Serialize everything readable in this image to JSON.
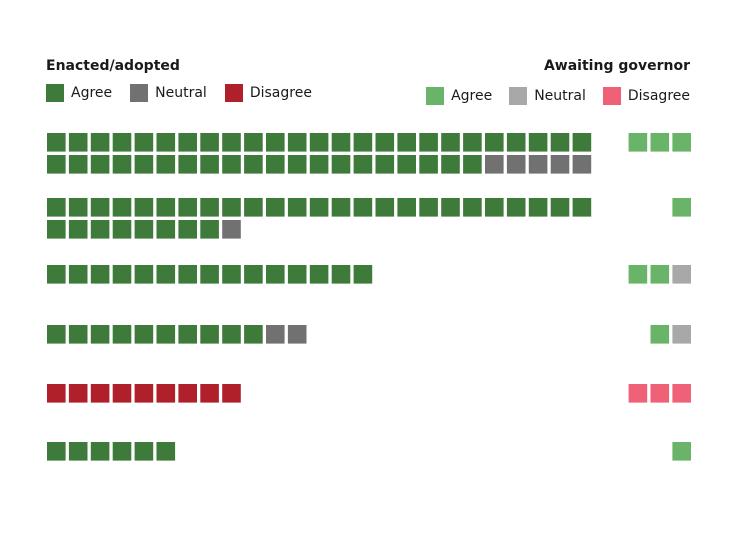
{
  "legend": {
    "enacted_title": "Enacted/adopted",
    "awaiting_title": "Awaiting governor",
    "enacted_items": [
      {
        "label": "Agree",
        "color": "#3e7a3a"
      },
      {
        "label": "Neutral",
        "color": "#717171"
      },
      {
        "label": "Disagree",
        "color": "#b0202b"
      }
    ],
    "awaiting_items": [
      {
        "label": "Agree",
        "color": "#6ab46a"
      },
      {
        "label": "Neutral",
        "color": "#a8a8a8"
      },
      {
        "label": "Disagree",
        "color": "#ee6176"
      }
    ]
  },
  "chart_data": {
    "type": "waffle",
    "row_count": 6,
    "units_per_line": 25,
    "groups": [
      {
        "enacted": {
          "agree": 45,
          "neutral": 5,
          "disagree": 0
        },
        "awaiting": {
          "agree": 3,
          "neutral": 0,
          "disagree": 0
        }
      },
      {
        "enacted": {
          "agree": 33,
          "neutral": 1,
          "disagree": 0
        },
        "awaiting": {
          "agree": 1,
          "neutral": 0,
          "disagree": 0
        }
      },
      {
        "enacted": {
          "agree": 15,
          "neutral": 0,
          "disagree": 0
        },
        "awaiting": {
          "agree": 2,
          "neutral": 1,
          "disagree": 0
        }
      },
      {
        "enacted": {
          "agree": 10,
          "neutral": 2,
          "disagree": 0
        },
        "awaiting": {
          "agree": 1,
          "neutral": 1,
          "disagree": 0
        }
      },
      {
        "enacted": {
          "agree": 0,
          "neutral": 0,
          "disagree": 9
        },
        "awaiting": {
          "agree": 0,
          "neutral": 0,
          "disagree": 3
        }
      },
      {
        "enacted": {
          "agree": 6,
          "neutral": 0,
          "disagree": 0
        },
        "awaiting": {
          "agree": 1,
          "neutral": 0,
          "disagree": 0
        }
      }
    ]
  }
}
